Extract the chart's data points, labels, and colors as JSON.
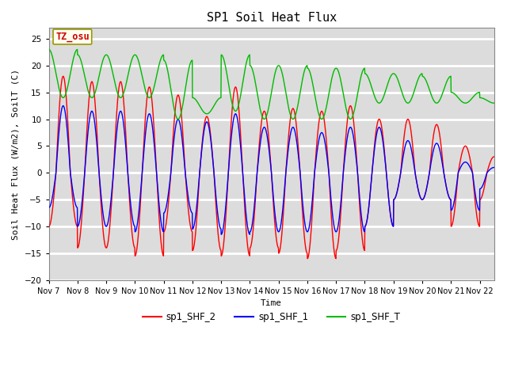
{
  "title": "SP1 Soil Heat Flux",
  "ylabel": "Soil Heat Flux (W/m2), SoilT (C)",
  "xlabel": "Time",
  "ylim": [
    -20,
    27
  ],
  "yticks": [
    -20,
    -15,
    -10,
    -5,
    0,
    5,
    10,
    15,
    20,
    25
  ],
  "xlim_days": 15.5,
  "n_days": 16,
  "xtick_labels": [
    "Nov 7",
    "Nov 8",
    "Nov 9",
    "Nov 10",
    "Nov 11",
    "Nov 12",
    "Nov 13",
    "Nov 14",
    "Nov 15",
    "Nov 16",
    "Nov 17",
    "Nov 18",
    "Nov 19",
    "Nov 20",
    "Nov 21",
    "Nov 22"
  ],
  "color_shf2": "#ff0000",
  "color_shf1": "#0000ff",
  "color_shft": "#00bb00",
  "background_color": "#dcdcdc",
  "grid_color": "#f0f0f0",
  "legend_labels": [
    "sp1_SHF_2",
    "sp1_SHF_1",
    "sp1_SHF_T"
  ],
  "annotation_text": "TZ_osu",
  "annotation_color": "#cc0000",
  "annotation_bg": "#fffff0",
  "annotation_border": "#999900"
}
